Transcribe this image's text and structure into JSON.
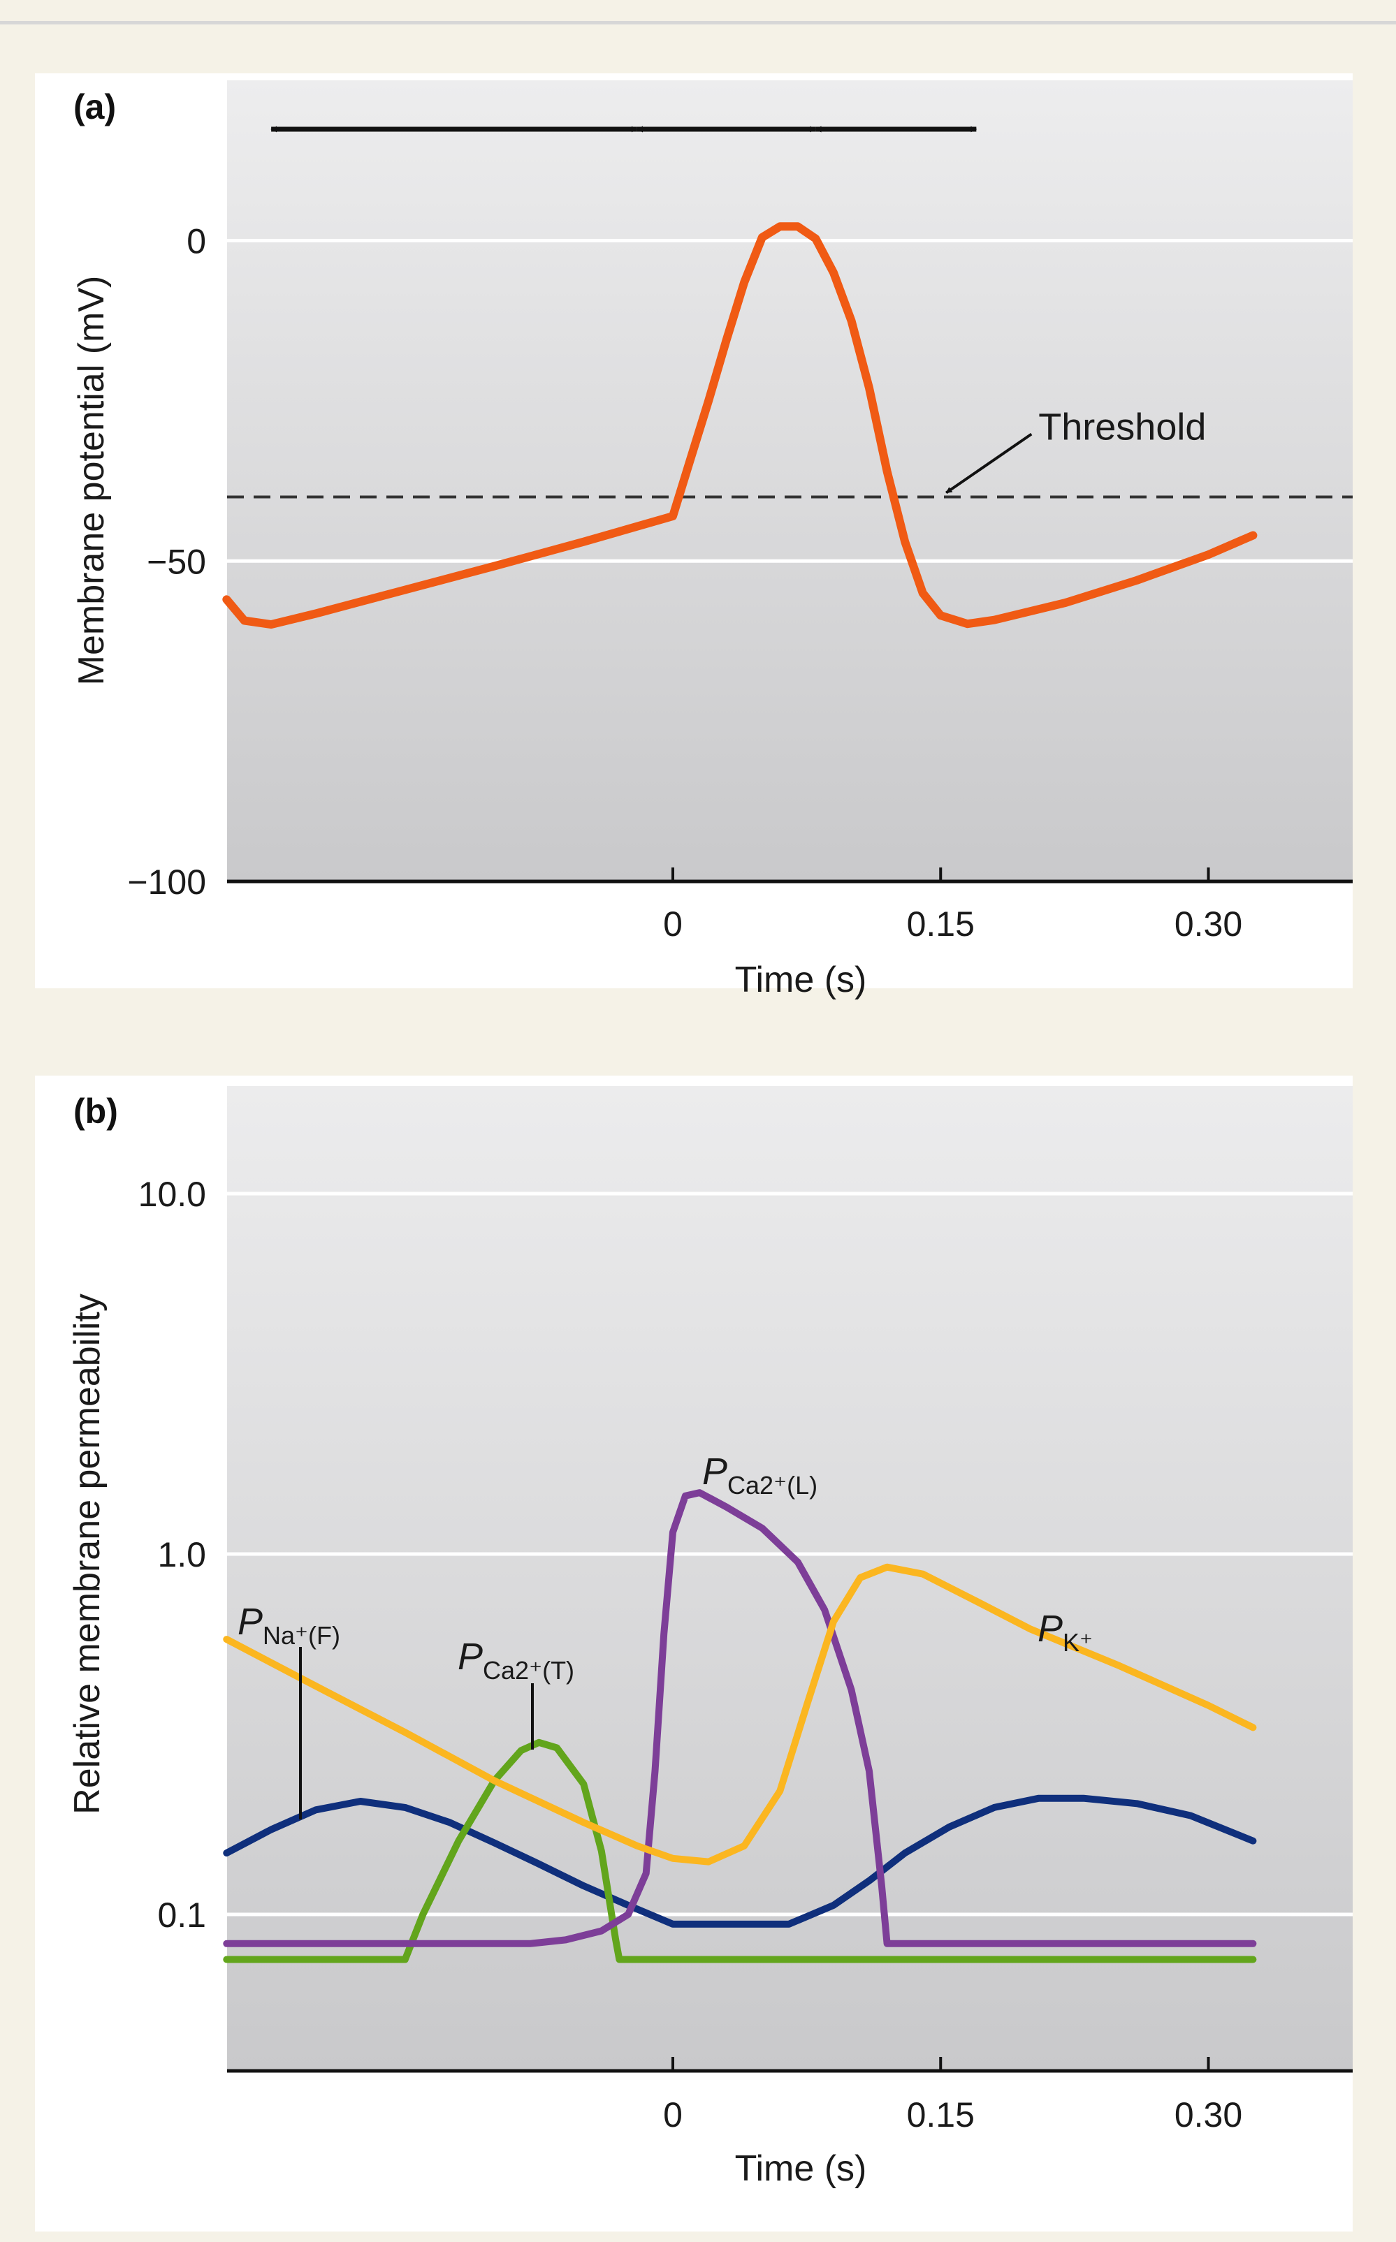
{
  "chart_data": [
    {
      "type": "line",
      "panel_label": "(a)",
      "ylabel": "Membrane potential (mV)",
      "xlabel": "Time (s)",
      "xlim": [
        -0.25,
        0.38
      ],
      "ylim": [
        -100,
        20
      ],
      "x_ticks": [
        0,
        0.15,
        0.3
      ],
      "x_tick_labels": [
        "0",
        "0.15",
        "0.30"
      ],
      "y_ticks": [
        0,
        -50,
        -100
      ],
      "y_tick_labels": [
        "0",
        "−50",
        "−100"
      ],
      "series": [
        {
          "name": "Membrane potential",
          "color": "#f05a14",
          "points": [
            [
              -0.25,
              -56
            ],
            [
              -0.24,
              -59.3
            ],
            [
              -0.225,
              -59.9
            ],
            [
              -0.2,
              -58.2
            ],
            [
              -0.15,
              -54.5
            ],
            [
              -0.1,
              -50.8
            ],
            [
              -0.05,
              -47
            ],
            [
              0,
              -43
            ],
            [
              0.01,
              -34
            ],
            [
              0.02,
              -25
            ],
            [
              0.03,
              -15.5
            ],
            [
              0.04,
              -6.5
            ],
            [
              0.05,
              0.5
            ],
            [
              0.06,
              2.2
            ],
            [
              0.07,
              2.2
            ],
            [
              0.08,
              0.3
            ],
            [
              0.09,
              -5
            ],
            [
              0.1,
              -12.5
            ],
            [
              0.11,
              -23
            ],
            [
              0.12,
              -36
            ],
            [
              0.13,
              -47
            ],
            [
              0.14,
              -55
            ],
            [
              0.15,
              -58.5
            ],
            [
              0.165,
              -59.8
            ],
            [
              0.18,
              -59.2
            ],
            [
              0.22,
              -56.5
            ],
            [
              0.26,
              -53
            ],
            [
              0.3,
              -49
            ],
            [
              0.325,
              -46
            ]
          ]
        }
      ],
      "reference_lines": [
        {
          "name": "Threshold",
          "y": -40,
          "style": "dashed"
        }
      ],
      "annotations": [
        {
          "text": "Threshold",
          "points_to": [
            0.15,
            -40
          ]
        }
      ],
      "phase_arrows": [
        {
          "from": -0.225,
          "to": -0.02
        },
        {
          "from": -0.02,
          "to": 0.08
        },
        {
          "from": 0.08,
          "to": 0.17
        }
      ]
    },
    {
      "type": "line",
      "panel_label": "(b)",
      "ylabel": "Relative membrane permeability",
      "xlabel": "Time (s)",
      "yscale": "log",
      "xlim": [
        -0.25,
        0.38
      ],
      "ylim": [
        0.04,
        20
      ],
      "x_ticks": [
        0,
        0.15,
        0.3
      ],
      "x_tick_labels": [
        "0",
        "0.15",
        "0.30"
      ],
      "y_ticks": [
        0.1,
        1.0,
        10.0
      ],
      "y_tick_labels": [
        "0.1",
        "1.0",
        "10.0"
      ],
      "series": [
        {
          "name": "P_Na+(F)",
          "label_main": "P",
          "label_sub": "Na⁺(F)",
          "color": "#0f2f7c",
          "points": [
            [
              -0.25,
              0.148
            ],
            [
              -0.225,
              0.172
            ],
            [
              -0.2,
              0.195
            ],
            [
              -0.175,
              0.206
            ],
            [
              -0.15,
              0.198
            ],
            [
              -0.125,
              0.18
            ],
            [
              -0.1,
              0.158
            ],
            [
              -0.075,
              0.138
            ],
            [
              -0.05,
              0.12
            ],
            [
              -0.025,
              0.106
            ],
            [
              0,
              0.094
            ],
            [
              0.03,
              0.094
            ],
            [
              0.065,
              0.094
            ],
            [
              0.09,
              0.106
            ],
            [
              0.11,
              0.124
            ],
            [
              0.13,
              0.148
            ],
            [
              0.155,
              0.175
            ],
            [
              0.18,
              0.198
            ],
            [
              0.205,
              0.21
            ],
            [
              0.23,
              0.21
            ],
            [
              0.26,
              0.203
            ],
            [
              0.29,
              0.188
            ],
            [
              0.325,
              0.16
            ]
          ]
        },
        {
          "name": "P_Ca2+(T)",
          "label_main": "P",
          "label_sub": "Ca2⁺(T)",
          "color": "#62a51c",
          "points": [
            [
              -0.25,
              0.075
            ],
            [
              -0.15,
              0.075
            ],
            [
              -0.14,
              0.1
            ],
            [
              -0.12,
              0.16
            ],
            [
              -0.1,
              0.235
            ],
            [
              -0.085,
              0.285
            ],
            [
              -0.075,
              0.3
            ],
            [
              -0.065,
              0.29
            ],
            [
              -0.05,
              0.23
            ],
            [
              -0.04,
              0.15
            ],
            [
              -0.032,
              0.085
            ],
            [
              -0.03,
              0.075
            ],
            [
              0.325,
              0.075
            ]
          ]
        },
        {
          "name": "P_Ca2+(L)",
          "label_main": "P",
          "label_sub": "Ca2⁺(L)",
          "color": "#7d3e98",
          "points": [
            [
              -0.25,
              0.083
            ],
            [
              -0.08,
              0.083
            ],
            [
              -0.06,
              0.085
            ],
            [
              -0.04,
              0.09
            ],
            [
              -0.025,
              0.1
            ],
            [
              -0.015,
              0.13
            ],
            [
              -0.01,
              0.25
            ],
            [
              -0.005,
              0.6
            ],
            [
              0,
              1.15
            ],
            [
              0.007,
              1.45
            ],
            [
              0.015,
              1.48
            ],
            [
              0.03,
              1.35
            ],
            [
              0.05,
              1.18
            ],
            [
              0.07,
              0.95
            ],
            [
              0.085,
              0.7
            ],
            [
              0.1,
              0.42
            ],
            [
              0.11,
              0.25
            ],
            [
              0.117,
              0.12
            ],
            [
              0.12,
              0.083
            ],
            [
              0.325,
              0.083
            ]
          ]
        },
        {
          "name": "P_K+",
          "label_main": "P",
          "label_sub": "K⁺",
          "color": "#fbb620",
          "points": [
            [
              -0.25,
              0.58
            ],
            [
              -0.2,
              0.43
            ],
            [
              -0.15,
              0.32
            ],
            [
              -0.1,
              0.235
            ],
            [
              -0.05,
              0.18
            ],
            [
              -0.02,
              0.155
            ],
            [
              0,
              0.143
            ],
            [
              0.02,
              0.14
            ],
            [
              0.04,
              0.155
            ],
            [
              0.06,
              0.22
            ],
            [
              0.075,
              0.38
            ],
            [
              0.09,
              0.65
            ],
            [
              0.105,
              0.86
            ],
            [
              0.12,
              0.92
            ],
            [
              0.14,
              0.88
            ],
            [
              0.17,
              0.74
            ],
            [
              0.2,
              0.62
            ],
            [
              0.25,
              0.49
            ],
            [
              0.3,
              0.38
            ],
            [
              0.325,
              0.33
            ]
          ]
        }
      ]
    }
  ]
}
